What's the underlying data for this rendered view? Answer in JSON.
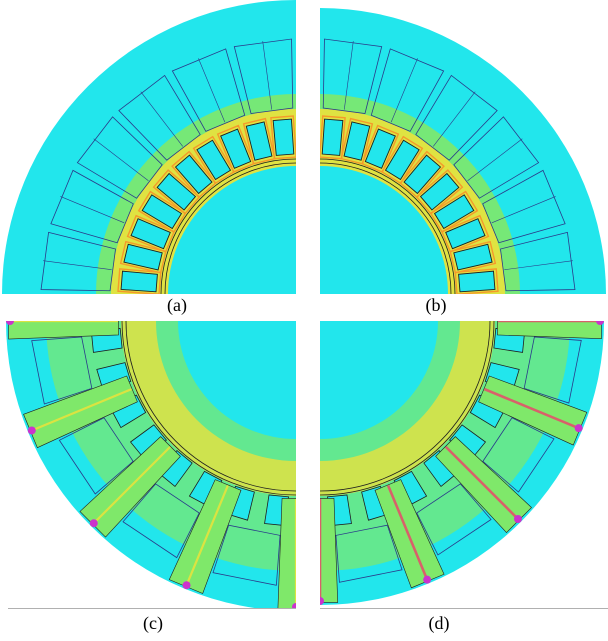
{
  "captions": {
    "a": "(a)",
    "b": "(b)",
    "c": "(c)",
    "d": "(d)"
  },
  "colors": {
    "background_field": "#22e6ec",
    "low_field_green": "#7fe86a",
    "mid_field_yellow": "#f2e238",
    "high_field_orange": "#f59a2a",
    "peak_field_red": "#e84a6a",
    "saturation_magenta": "#cc33cc",
    "flux_line": "#1f1f1f",
    "geometry_line": "#2a3a8a"
  }
}
